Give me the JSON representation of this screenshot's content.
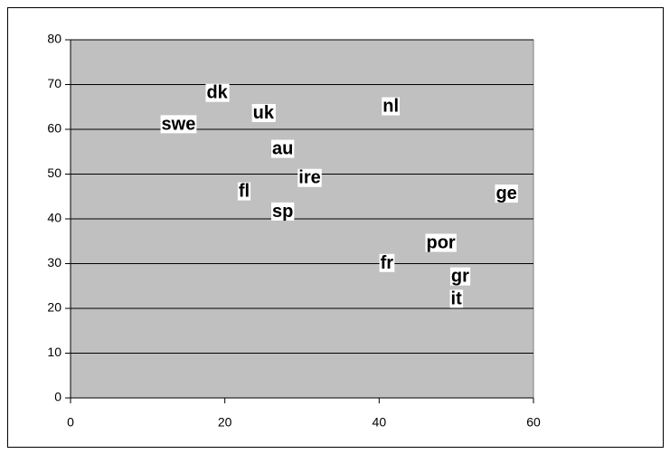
{
  "chart_data": {
    "type": "scatter",
    "labels": [
      "dk",
      "uk",
      "swe",
      "nl",
      "au",
      "ire",
      "fl",
      "sp",
      "ge",
      "por",
      "fr",
      "gr",
      "it"
    ],
    "x": [
      19,
      25,
      14,
      41.5,
      27.5,
      31,
      22.5,
      27.5,
      56.5,
      48,
      41,
      50.5,
      50
    ],
    "values": [
      68,
      63.5,
      61,
      65,
      55.5,
      49,
      46,
      41.5,
      45.5,
      34.5,
      30,
      27,
      22
    ],
    "xlim": [
      0,
      60
    ],
    "xticks": [
      0,
      20,
      40,
      60
    ],
    "ylim": [
      0,
      80
    ],
    "yticks": [
      0,
      10,
      20,
      30,
      40,
      50,
      60,
      70,
      80
    ],
    "grid": true,
    "plot_color": "#c0c0c0"
  }
}
